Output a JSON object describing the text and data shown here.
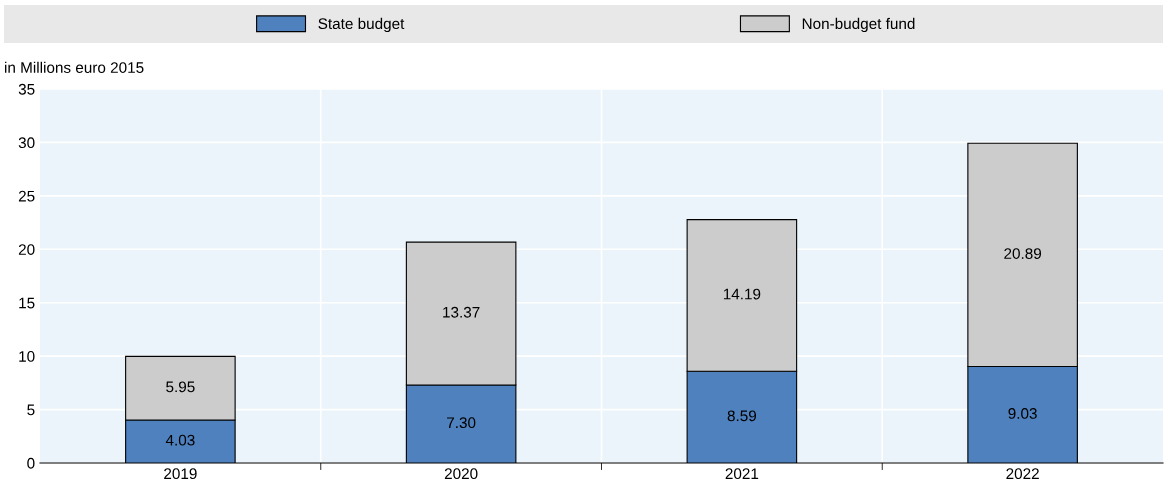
{
  "chart_data": {
    "type": "bar",
    "stacked": true,
    "ylabel": "in Millions euro 2015",
    "categories": [
      "2019",
      "2020",
      "2021",
      "2022"
    ],
    "series": [
      {
        "name": "State budget",
        "color": "#4e81bd",
        "values": [
          4.03,
          7.3,
          8.59,
          9.03
        ],
        "value_labels": [
          "4.03",
          "7.30",
          "8.59",
          "9.03"
        ]
      },
      {
        "name": "Non-budget fund",
        "color": "#cccccc",
        "values": [
          5.95,
          13.37,
          14.19,
          20.89
        ],
        "value_labels": [
          "5.95",
          "13.37",
          "14.19",
          "20.89"
        ]
      }
    ],
    "ylim": [
      0,
      35
    ],
    "yticks": [
      0,
      5,
      10,
      15,
      20,
      25,
      30,
      35
    ],
    "grid": true,
    "legend": "top"
  }
}
